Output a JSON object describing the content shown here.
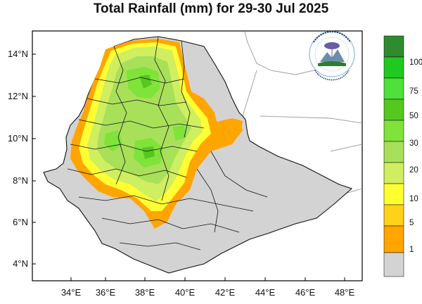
{
  "title": "Total Rainfall (mm) for 29-30 Jul 2025",
  "axes": {
    "x_ticks": [
      "34°E",
      "36°E",
      "38°E",
      "40°E",
      "42°E",
      "44°E",
      "46°E",
      "48°E"
    ],
    "y_ticks": [
      "14°N",
      "12°N",
      "10°N",
      "8°N",
      "6°N",
      "4°N"
    ]
  },
  "legend": {
    "labels": [
      "100",
      "75",
      "50",
      "30",
      "20",
      "10",
      "5",
      "1"
    ],
    "colors": [
      "#2e8b2e",
      "#1fc91f",
      "#4fe03a",
      "#55c81f",
      "#7fe33a",
      "#a8e05a",
      "#cfee60",
      "#ffff33",
      "#ffd21a",
      "#ffa500",
      "#d3d3d3"
    ]
  },
  "colors": {
    "land_no_rain": "#d3d3d3",
    "boundary": "#111111",
    "frame": "#000000"
  },
  "logo": {
    "icon": "ethiopian-meteorology-institute-logo"
  },
  "chart_data": {
    "type": "heatmap",
    "title": "Total Rainfall (mm) for 29-30 Jul 2025",
    "xlabel": "",
    "ylabel": "",
    "xlim": [
      32.5,
      48.2
    ],
    "ylim": [
      3.0,
      15.3
    ],
    "x_ticks": [
      34,
      36,
      38,
      40,
      42,
      44,
      46,
      48
    ],
    "y_ticks": [
      4,
      6,
      8,
      10,
      12,
      14
    ],
    "colorbar_levels_mm": [
      1,
      5,
      10,
      20,
      30,
      50,
      75,
      100
    ],
    "grid": false
  }
}
